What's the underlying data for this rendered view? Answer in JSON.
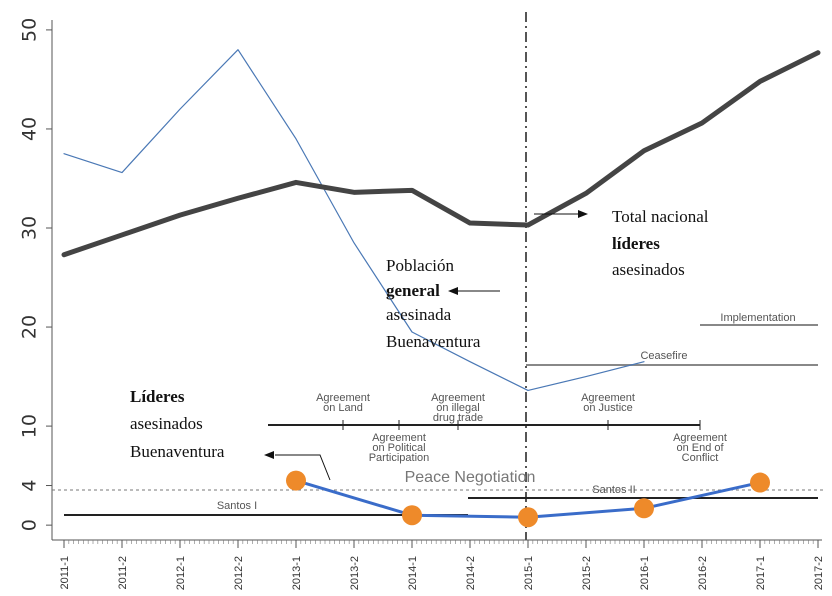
{
  "chart_data": {
    "type": "line",
    "x": [
      "2011-1",
      "2011-2",
      "2012-1",
      "2012-2",
      "2013-1",
      "2013-2",
      "2014-1",
      "2014-2",
      "2015-1",
      "2015-2",
      "2016-1",
      "2016-2",
      "2017-1",
      "2017-2"
    ],
    "yticks": [
      "0",
      "4",
      "10",
      "20",
      "30",
      "40",
      "50"
    ],
    "ylim": [
      -1.5,
      51
    ],
    "grid": false,
    "series": [
      {
        "key": "poblacion",
        "color": "#4a78b5",
        "points": [
          [
            0,
            37.5
          ],
          [
            1,
            35.6
          ],
          [
            2,
            42
          ],
          [
            3,
            48
          ],
          [
            4,
            39
          ],
          [
            5,
            28.5
          ],
          [
            6,
            19.5
          ],
          [
            7,
            16.5
          ],
          [
            8,
            13.6
          ],
          [
            9,
            15
          ],
          [
            10,
            16.5
          ]
        ]
      },
      {
        "key": "total",
        "color": "#444444",
        "points": [
          [
            0,
            27.3
          ],
          [
            1,
            29.3
          ],
          [
            2,
            31.3
          ],
          [
            3,
            33
          ],
          [
            4,
            34.6
          ],
          [
            5,
            33.6
          ],
          [
            6,
            33.8
          ],
          [
            7,
            30.5
          ],
          [
            8,
            30.3
          ],
          [
            9,
            33.5
          ],
          [
            10,
            37.8
          ],
          [
            11,
            40.6
          ],
          [
            12,
            44.8
          ],
          [
            13,
            47.7
          ]
        ]
      },
      {
        "key": "lideres",
        "color": "#3a6cc9",
        "marker_color": "#ee8a2a",
        "points": [
          [
            4,
            4.5
          ],
          [
            6,
            1
          ],
          [
            8,
            0.8
          ],
          [
            10,
            1.7
          ],
          [
            12,
            4.3
          ]
        ]
      }
    ],
    "annotations": {
      "total_label": [
        "Total nacional",
        "líderes",
        "asesinados"
      ],
      "poblacion_label": [
        "Población",
        "general",
        "asesinada",
        "Buenaventura"
      ],
      "lideres_label": [
        "Líderes",
        "asesinados",
        "Buenaventura"
      ],
      "peace_negotiation": "Peace Negotiation",
      "santos_1": "Santos I",
      "santos_2": "Santos II",
      "implementation": "Implementation",
      "ceasefire": "Ceasefire",
      "agreement_land": [
        "Agreement",
        "on Land"
      ],
      "agreement_political": [
        "Agreement",
        "on Political",
        "Participation"
      ],
      "agreement_drug": [
        "Agreement",
        "on illegal",
        "drug trade"
      ],
      "agreement_justice": [
        "Agreement",
        "on Justice"
      ],
      "agreement_end": [
        "Agreement",
        "on End of",
        "Conflict"
      ]
    }
  }
}
